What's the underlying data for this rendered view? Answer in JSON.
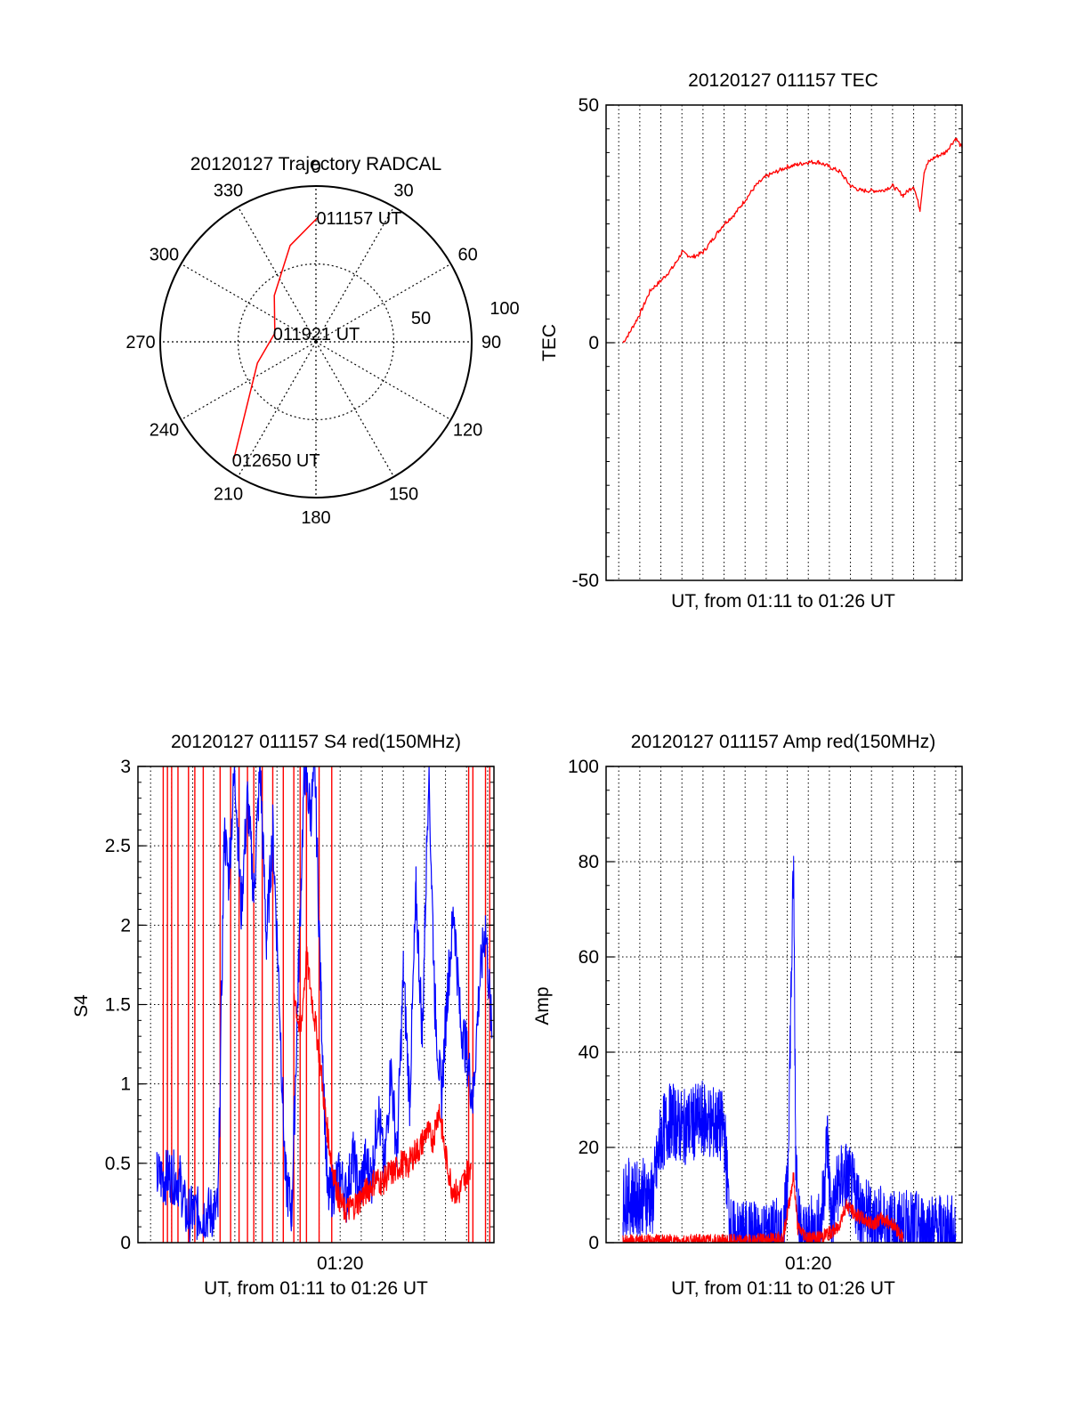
{
  "colors": {
    "primary": "#ff0000",
    "secondary": "#0000ff",
    "axes": "#000000",
    "grid": "#000000",
    "background": "#ffffff"
  },
  "chart_data": [
    {
      "type": "polar",
      "title": "20120127 Trajectory RADCAL",
      "angle_labels": [
        "0",
        "30",
        "60",
        "90",
        "120",
        "150",
        "180",
        "210",
        "240",
        "270",
        "300",
        "330"
      ],
      "radius_labels": [
        "50",
        "100"
      ],
      "rlim": [
        0,
        100
      ],
      "series": [
        {
          "color": "#ff0000",
          "points": [
            {
              "az": 1,
              "r": 80
            },
            {
              "az": 345,
              "r": 64
            },
            {
              "az": 318,
              "r": 40
            },
            {
              "az": 282,
              "r": 27
            },
            {
              "az": 250,
              "r": 40
            },
            {
              "az": 215,
              "r": 92
            }
          ]
        }
      ],
      "annotations": [
        {
          "text": "011157 UT",
          "az": 1,
          "r": 80
        },
        {
          "text": "011921 UT",
          "az": 282,
          "r": 27
        },
        {
          "text": "012650 UT",
          "az": 215,
          "r": 92
        }
      ]
    },
    {
      "type": "line",
      "title": "20120127 011157 TEC",
      "xlabel": "UT, from 01:11 to 01:26 UT",
      "ylabel": "TEC",
      "ylim": [
        -50,
        50
      ],
      "yticks": [
        "-50",
        "0",
        "50"
      ],
      "grid": true,
      "xlim_minutes": [
        10.4,
        27.3
      ],
      "series": [
        {
          "color": "#ff0000",
          "x_minutes": [
            11.2,
            11.5,
            12.0,
            12.5,
            13.0,
            13.6,
            14.0,
            14.5,
            15.0,
            15.5,
            16.0,
            16.5,
            17.0,
            17.5,
            18.0,
            18.5,
            19.0,
            19.5,
            20.0,
            20.5,
            21.0,
            21.5,
            22.0,
            22.5,
            23.0,
            23.5,
            24.0,
            24.5,
            25.0,
            25.3,
            25.5,
            25.7,
            26.0,
            26.5,
            27.0,
            27.3
          ],
          "values": [
            0,
            2,
            6,
            11,
            13,
            16,
            19,
            18,
            19,
            22,
            25,
            27,
            30,
            33,
            35,
            36,
            37,
            37.5,
            38,
            38,
            37,
            36,
            33,
            32,
            32,
            32,
            33,
            31,
            33,
            28,
            36,
            38,
            39,
            40,
            43,
            41
          ]
        }
      ]
    },
    {
      "type": "line",
      "title": "20120127 011157 S4 red(150MHz)",
      "xlabel": "UT, from 01:11 to 01:26 UT",
      "ylabel": "S4",
      "ylim": [
        0,
        3
      ],
      "yticks": [
        "0",
        "0.5",
        "1",
        "1.5",
        "2",
        "2.5",
        "3"
      ],
      "xticks": [
        {
          "label": "01:20",
          "minute": 20
        }
      ],
      "grid": true,
      "xlim_minutes": [
        10.4,
        27.3
      ],
      "spike_series": {
        "color": "#ff0000",
        "x_minutes": [
          11.6,
          11.8,
          12.0,
          12.3,
          12.8,
          13.1,
          13.5,
          14.3,
          14.8,
          15.2,
          15.6,
          15.9,
          16.3,
          16.8,
          17.3,
          17.8,
          18.1,
          18.4,
          19.0,
          19.6,
          26.1,
          26.3,
          26.9,
          27.1
        ]
      },
      "series": [
        {
          "color": "#0000ff",
          "x_minutes": [
            11.3,
            11.6,
            11.9,
            12.1,
            12.4,
            12.7,
            13.0,
            13.2,
            13.5,
            13.9,
            14.2,
            14.5,
            14.7,
            15.0,
            15.3,
            15.6,
            15.9,
            16.2,
            16.5,
            16.8,
            17.1,
            17.4,
            17.7,
            18.0,
            18.3,
            18.6,
            18.8,
            19.1,
            19.4,
            19.7,
            20.0,
            20.3,
            20.6,
            20.9,
            21.2,
            21.5,
            21.8,
            22.1,
            22.4,
            22.7,
            23.0,
            23.3,
            23.6,
            23.9,
            24.2,
            24.5,
            24.8,
            25.1,
            25.4,
            25.7,
            26.0,
            26.3,
            26.6,
            26.9,
            27.2
          ],
          "values": [
            0.42,
            0.4,
            0.43,
            0.41,
            0.39,
            0.17,
            0.19,
            0.18,
            0.18,
            0.19,
            0.2,
            2.6,
            2.3,
            3.0,
            2.1,
            2.8,
            2.2,
            3.0,
            1.9,
            2.6,
            1.6,
            0.4,
            0.2,
            1.6,
            3.0,
            2.7,
            3.0,
            1.5,
            0.28,
            0.35,
            0.42,
            0.28,
            0.55,
            0.32,
            0.5,
            0.4,
            0.85,
            0.45,
            1.1,
            0.55,
            1.7,
            0.9,
            2.2,
            1.3,
            3.0,
            1.5,
            0.9,
            1.6,
            2.1,
            1.4,
            1.2,
            0.9,
            1.6,
            2.0,
            1.3
          ]
        },
        {
          "color": "#ff0000",
          "x_minutes": [
            17.8,
            18.1,
            18.4,
            18.7,
            19.0,
            19.3,
            19.6,
            19.9,
            20.2,
            20.5,
            20.8,
            21.1,
            21.4,
            21.7,
            22.0,
            22.3,
            22.6,
            22.9,
            23.2,
            23.5,
            23.8,
            24.1,
            24.4,
            24.7,
            25.0,
            25.3,
            25.6,
            25.9,
            26.2
          ],
          "values": [
            1.6,
            1.3,
            1.8,
            1.5,
            1.2,
            0.8,
            0.5,
            0.3,
            0.2,
            0.22,
            0.25,
            0.3,
            0.35,
            0.4,
            0.38,
            0.43,
            0.45,
            0.5,
            0.48,
            0.56,
            0.6,
            0.7,
            0.65,
            0.85,
            0.55,
            0.35,
            0.3,
            0.4,
            0.5
          ]
        }
      ]
    },
    {
      "type": "line",
      "title": "20120127 011157 Amp red(150MHz)",
      "xlabel": "UT, from 01:11 to 01:26 UT",
      "ylabel": "Amp",
      "ylim": [
        0,
        100
      ],
      "yticks": [
        "0",
        "20",
        "40",
        "60",
        "80",
        "100"
      ],
      "xticks": [
        {
          "label": "01:20",
          "minute": 20
        }
      ],
      "grid": true,
      "xlim_minutes": [
        10.4,
        27.3
      ],
      "series": [
        {
          "color": "#0000ff",
          "x_minutes": [
            11.2,
            11.4,
            11.8,
            12.2,
            12.6,
            13.0,
            13.2,
            13.5,
            14.0,
            14.5,
            15.0,
            15.5,
            16.0,
            16.3,
            16.5,
            17.0,
            17.5,
            18.0,
            18.5,
            18.8,
            19.0,
            19.3,
            19.4,
            19.6,
            19.8,
            20.2,
            20.6,
            20.9,
            21.1,
            21.4,
            21.8,
            22.2,
            22.6,
            23.0,
            23.5,
            24.0,
            25.0,
            26.0,
            27.0
          ],
          "values": [
            8,
            10,
            9,
            10,
            9,
            22,
            24,
            26,
            24,
            25,
            26,
            25,
            24,
            2,
            1,
            1,
            1.5,
            1,
            1.5,
            1,
            10,
            80,
            20,
            2,
            1,
            2,
            3,
            22,
            4,
            12,
            14,
            10,
            6,
            5,
            4,
            3,
            3,
            2.5,
            2
          ]
        },
        {
          "color": "#ff0000",
          "x_minutes": [
            11.2,
            15.0,
            16.2,
            17.0,
            18.8,
            19.0,
            19.3,
            19.5,
            20.0,
            20.5,
            21.0,
            21.4,
            21.8,
            22.2,
            22.6,
            23.0,
            23.5,
            24.0,
            24.5
          ],
          "values": [
            0.2,
            0.3,
            0.3,
            0.2,
            1,
            6,
            14,
            3,
            1,
            1,
            2,
            3,
            8,
            6,
            5,
            4,
            5,
            4,
            1
          ]
        }
      ]
    }
  ]
}
